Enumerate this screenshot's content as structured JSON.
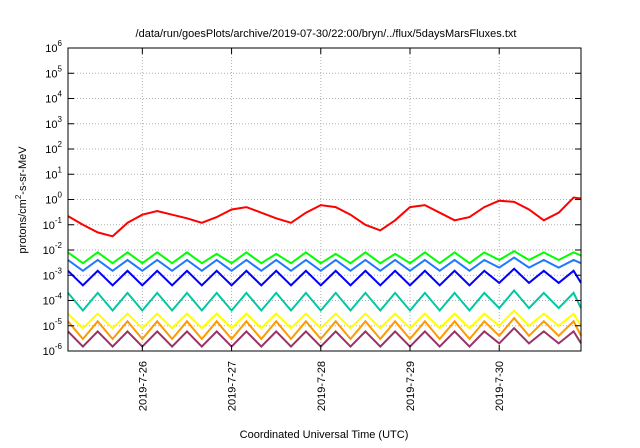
{
  "chart_data": {
    "type": "line",
    "title": "/data/run/goesPlots/archive/2019-07-30/22:00/bryn/../flux/5daysMarsFluxes.txt",
    "xlabel": "Coordinated Universal Time (UTC)",
    "ylabel": "protons/cm2-s-sr-MeV",
    "yscale": "log",
    "ylim": [
      1e-06,
      1000000.0
    ],
    "xlim": [
      "2019-07-25 04:00",
      "2019-07-30 22:00"
    ],
    "x_ticks": [
      "2019-7-26",
      "2019-7-27",
      "2019-7-28",
      "2019-7-29",
      "2019-7-30"
    ],
    "y_ticks": [
      "10^-6",
      "10^-5",
      "10^-4",
      "10^-3",
      "10^-2",
      "10^-1",
      "10^0",
      "10^1",
      "10^2",
      "10^3",
      "10^4",
      "10^5",
      "10^6"
    ],
    "grid": true,
    "legend": "none",
    "x": [
      "2019-07-25 04:00",
      "2019-07-25 08:00",
      "2019-07-25 12:00",
      "2019-07-25 16:00",
      "2019-07-25 20:00",
      "2019-07-26 00:00",
      "2019-07-26 04:00",
      "2019-07-26 08:00",
      "2019-07-26 12:00",
      "2019-07-26 16:00",
      "2019-07-26 20:00",
      "2019-07-27 00:00",
      "2019-07-27 04:00",
      "2019-07-27 08:00",
      "2019-07-27 12:00",
      "2019-07-27 16:00",
      "2019-07-27 20:00",
      "2019-07-28 00:00",
      "2019-07-28 04:00",
      "2019-07-28 08:00",
      "2019-07-28 12:00",
      "2019-07-28 16:00",
      "2019-07-28 20:00",
      "2019-07-29 00:00",
      "2019-07-29 04:00",
      "2019-07-29 08:00",
      "2019-07-29 12:00",
      "2019-07-29 16:00",
      "2019-07-29 20:00",
      "2019-07-30 00:00",
      "2019-07-30 04:00",
      "2019-07-30 08:00",
      "2019-07-30 12:00",
      "2019-07-30 16:00",
      "2019-07-30 20:00",
      "2019-07-30 22:00"
    ],
    "series": [
      {
        "color": "#ff0000",
        "values": [
          0.22,
          0.1,
          0.05,
          0.035,
          0.12,
          0.25,
          0.35,
          0.25,
          0.18,
          0.12,
          0.2,
          0.4,
          0.5,
          0.3,
          0.18,
          0.12,
          0.3,
          0.6,
          0.5,
          0.25,
          0.1,
          0.06,
          0.15,
          0.5,
          0.6,
          0.3,
          0.15,
          0.2,
          0.5,
          0.9,
          0.8,
          0.4,
          0.15,
          0.3,
          1.2,
          1.1
        ]
      },
      {
        "color": "#00ff00",
        "values": [
          0.008,
          0.003,
          0.008,
          0.003,
          0.008,
          0.003,
          0.008,
          0.003,
          0.008,
          0.003,
          0.007,
          0.003,
          0.008,
          0.003,
          0.007,
          0.003,
          0.008,
          0.003,
          0.007,
          0.003,
          0.008,
          0.003,
          0.007,
          0.003,
          0.008,
          0.003,
          0.008,
          0.003,
          0.008,
          0.004,
          0.009,
          0.004,
          0.008,
          0.004,
          0.008,
          0.006
        ]
      },
      {
        "color": "#1e78ff",
        "values": [
          0.004,
          0.0015,
          0.004,
          0.0015,
          0.004,
          0.0015,
          0.004,
          0.0015,
          0.004,
          0.0015,
          0.004,
          0.0015,
          0.004,
          0.0015,
          0.004,
          0.0015,
          0.004,
          0.0015,
          0.004,
          0.0015,
          0.004,
          0.0015,
          0.004,
          0.0015,
          0.004,
          0.0015,
          0.004,
          0.0015,
          0.004,
          0.002,
          0.005,
          0.002,
          0.004,
          0.002,
          0.004,
          0.003
        ]
      },
      {
        "color": "#0000ff",
        "values": [
          0.0015,
          0.0004,
          0.0015,
          0.0004,
          0.0015,
          0.0004,
          0.0015,
          0.0004,
          0.0015,
          0.0004,
          0.0015,
          0.0004,
          0.0015,
          0.0004,
          0.0015,
          0.0004,
          0.0015,
          0.0004,
          0.0015,
          0.0004,
          0.0015,
          0.0004,
          0.0015,
          0.0004,
          0.0015,
          0.0004,
          0.0015,
          0.0004,
          0.0015,
          0.0005,
          0.0018,
          0.0005,
          0.0015,
          0.0005,
          0.0015,
          0.0005
        ]
      },
      {
        "color": "#00c8a0",
        "values": [
          0.0002,
          4e-05,
          0.0002,
          4e-05,
          0.0002,
          4e-05,
          0.0002,
          4e-05,
          0.0002,
          4e-05,
          0.0002,
          4e-05,
          0.0002,
          4e-05,
          0.0002,
          4e-05,
          0.0002,
          4e-05,
          0.0002,
          4e-05,
          0.0002,
          4e-05,
          0.0002,
          4e-05,
          0.0002,
          4e-05,
          0.0002,
          4e-05,
          0.0002,
          5e-05,
          0.00025,
          5e-05,
          0.0002,
          5e-05,
          0.0002,
          5e-05
        ]
      },
      {
        "color": "#ffff00",
        "values": [
          3e-05,
          8e-06,
          3e-05,
          8e-06,
          3e-05,
          8e-06,
          3e-05,
          8e-06,
          3e-05,
          8e-06,
          3e-05,
          8e-06,
          3e-05,
          8e-06,
          3e-05,
          8e-06,
          3e-05,
          8e-06,
          3e-05,
          8e-06,
          3e-05,
          8e-06,
          3e-05,
          8e-06,
          3e-05,
          8e-06,
          3e-05,
          8e-06,
          3e-05,
          1e-05,
          4e-05,
          1e-05,
          3e-05,
          1e-05,
          3e-05,
          1e-05
        ]
      },
      {
        "color": "#ff9900",
        "values": [
          1.5e-05,
          3e-06,
          1.5e-05,
          3e-06,
          1.5e-05,
          3e-06,
          1.5e-05,
          3e-06,
          1.5e-05,
          3e-06,
          1.5e-05,
          3e-06,
          1.5e-05,
          3e-06,
          1.5e-05,
          3e-06,
          1.5e-05,
          3e-06,
          1.5e-05,
          3e-06,
          1.5e-05,
          3e-06,
          1.5e-05,
          3e-06,
          1.5e-05,
          3e-06,
          1.5e-05,
          3e-06,
          1.5e-05,
          4e-06,
          2e-05,
          4e-06,
          1.5e-05,
          4e-06,
          1.5e-05,
          4e-06
        ]
      },
      {
        "color": "#993366",
        "values": [
          6e-06,
          1.5e-06,
          6e-06,
          1.5e-06,
          6e-06,
          1.5e-06,
          6e-06,
          1.5e-06,
          6e-06,
          1.5e-06,
          6e-06,
          1.5e-06,
          6e-06,
          1.5e-06,
          6e-06,
          1.5e-06,
          6e-06,
          1.5e-06,
          6e-06,
          1.5e-06,
          6e-06,
          1.5e-06,
          6e-06,
          1.5e-06,
          6e-06,
          1.5e-06,
          6e-06,
          1.5e-06,
          6e-06,
          2e-06,
          8e-06,
          2e-06,
          6e-06,
          2e-06,
          6e-06,
          2e-06
        ]
      }
    ]
  }
}
